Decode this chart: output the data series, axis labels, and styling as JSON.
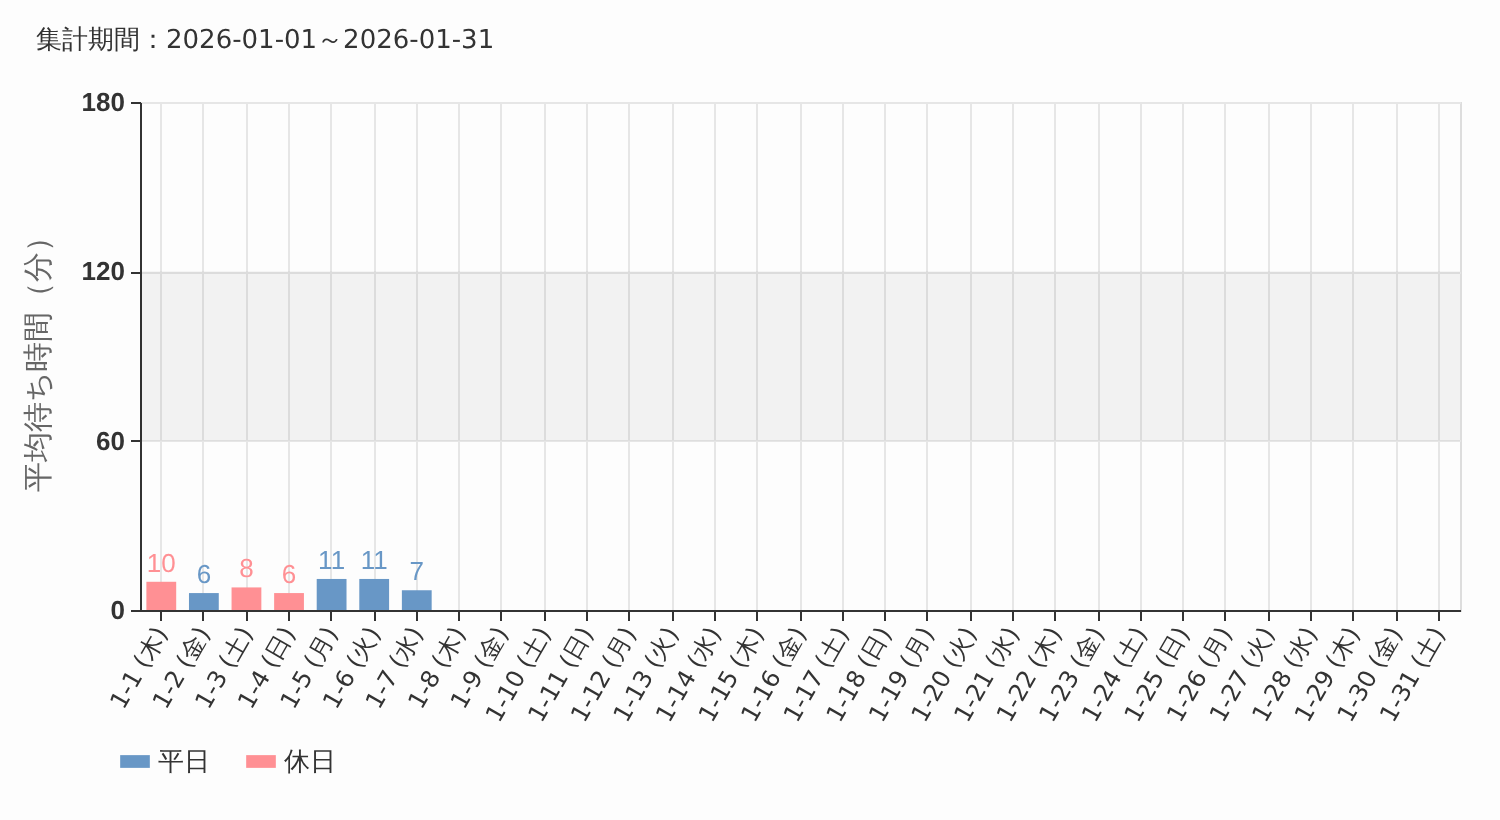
{
  "chart_data": {
    "type": "bar",
    "title": "集計期間：2026-01-01～2026-01-31",
    "ylabel": "平均待ち時間（分）",
    "categories": [
      "1-1 (木)",
      "1-2 (金)",
      "1-3 (土)",
      "1-4 (日)",
      "1-5 (月)",
      "1-6 (火)",
      "1-7 (水)",
      "1-8 (木)",
      "1-9 (金)",
      "1-10 (土)",
      "1-11 (日)",
      "1-12 (月)",
      "1-13 (火)",
      "1-14 (水)",
      "1-15 (木)",
      "1-16 (金)",
      "1-17 (土)",
      "1-18 (日)",
      "1-19 (月)",
      "1-20 (火)",
      "1-21 (水)",
      "1-22 (木)",
      "1-23 (金)",
      "1-24 (土)",
      "1-25 (日)",
      "1-26 (月)",
      "1-27 (火)",
      "1-28 (水)",
      "1-29 (木)",
      "1-30 (金)",
      "1-31 (土)"
    ],
    "series": [
      {
        "name": "平日",
        "color": "#6897c6",
        "values": [
          null,
          6,
          null,
          null,
          11,
          11,
          7,
          null,
          null,
          null,
          null,
          null,
          null,
          null,
          null,
          null,
          null,
          null,
          null,
          null,
          null,
          null,
          null,
          null,
          null,
          null,
          null,
          null,
          null,
          null,
          null
        ]
      },
      {
        "name": "休日",
        "color": "#ff9094",
        "values": [
          10,
          null,
          8,
          6,
          null,
          null,
          null,
          null,
          null,
          null,
          null,
          null,
          null,
          null,
          null,
          null,
          null,
          null,
          null,
          null,
          null,
          null,
          null,
          null,
          null,
          null,
          null,
          null,
          null,
          null,
          null
        ]
      }
    ],
    "stacked": true,
    "data_labels": true,
    "ylim": [
      0,
      180
    ],
    "yticks": [
      0,
      60,
      120,
      180
    ],
    "bands": [
      {
        "axis": "y",
        "from": 60,
        "to": 120,
        "color": "#f4f4f4"
      }
    ],
    "grid": true,
    "legend": "bottom left"
  }
}
